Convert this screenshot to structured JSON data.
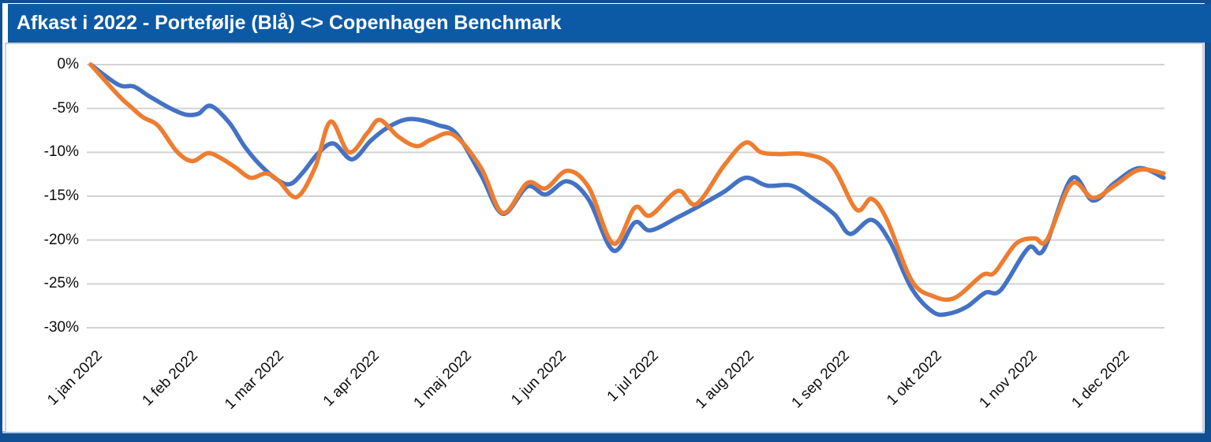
{
  "header": {
    "title": "Afkast i 2022 - Portefølje (Blå) <> Copenhagen Benchmark"
  },
  "colors": {
    "header_bar": "#0c5aa6",
    "frame_border": "#114f93",
    "frame_accent_light": "#a6c5e6",
    "gridline": "#d3d3d3",
    "axis_text": "#0d0d0d",
    "portfolio_blue": "#4472C4",
    "benchmark_orange": "#ED7D31"
  },
  "chart_data": {
    "type": "line",
    "title": "Afkast i 2022 - Portefølje (Blå) <> Copenhagen Benchmark",
    "xlabel": "",
    "ylabel": "",
    "grid": true,
    "legend": "none",
    "x_axis": {
      "unit": "date",
      "tick_labels": [
        "1 jan 2022",
        "1 feb 2022",
        "1 mar 2022",
        "1 apr 2022",
        "1 maj 2022",
        "1 jun 2022",
        "1 jul 2022",
        "1 aug 2022",
        "1 sep 2022",
        "1 okt 2022",
        "1 nov 2022",
        "1 dec 2022"
      ],
      "tick_days": [
        0,
        31,
        59,
        90,
        120,
        151,
        181,
        212,
        243,
        273,
        304,
        334
      ],
      "domain_days": [
        0,
        349
      ]
    },
    "y_axis": {
      "unit": "%",
      "tick_labels": [
        "0%",
        "-5%",
        "-10%",
        "-15%",
        "-20%",
        "-25%",
        "-30%"
      ],
      "tick_values": [
        0,
        -5,
        -10,
        -15,
        -20,
        -25,
        -30
      ],
      "range": [
        -30,
        0
      ]
    },
    "series": [
      {
        "name": "Portefølje",
        "color": "#4472C4",
        "points": [
          [
            0,
            0
          ],
          [
            9,
            -2.3
          ],
          [
            14,
            -2.5
          ],
          [
            19,
            -3.6
          ],
          [
            26,
            -5.0
          ],
          [
            31,
            -5.7
          ],
          [
            35,
            -5.6
          ],
          [
            39,
            -4.7
          ],
          [
            45,
            -6.6
          ],
          [
            50,
            -9.3
          ],
          [
            55,
            -11.4
          ],
          [
            61,
            -13.2
          ],
          [
            65,
            -13.6
          ],
          [
            69,
            -12.3
          ],
          [
            74,
            -10.1
          ],
          [
            79,
            -9.0
          ],
          [
            85,
            -10.8
          ],
          [
            91,
            -8.7
          ],
          [
            96,
            -7.3
          ],
          [
            102,
            -6.3
          ],
          [
            107,
            -6.3
          ],
          [
            113,
            -6.9
          ],
          [
            119,
            -7.9
          ],
          [
            127,
            -12.6
          ],
          [
            134,
            -17.0
          ],
          [
            142,
            -13.9
          ],
          [
            148,
            -14.8
          ],
          [
            155,
            -13.3
          ],
          [
            162,
            -15.4
          ],
          [
            170,
            -21.2
          ],
          [
            177,
            -18.0
          ],
          [
            182,
            -18.9
          ],
          [
            191,
            -17.4
          ],
          [
            198,
            -16.1
          ],
          [
            206,
            -14.5
          ],
          [
            213,
            -12.9
          ],
          [
            220,
            -13.8
          ],
          [
            228,
            -13.8
          ],
          [
            235,
            -15.3
          ],
          [
            242,
            -17.1
          ],
          [
            247,
            -19.3
          ],
          [
            254,
            -17.7
          ],
          [
            260,
            -20.2
          ],
          [
            267,
            -25.5
          ],
          [
            274,
            -28.2
          ],
          [
            279,
            -28.4
          ],
          [
            285,
            -27.6
          ],
          [
            291,
            -26.0
          ],
          [
            296,
            -25.7
          ],
          [
            305,
            -20.9
          ],
          [
            310,
            -21.1
          ],
          [
            319,
            -13.0
          ],
          [
            326,
            -15.5
          ],
          [
            333,
            -13.5
          ],
          [
            341,
            -11.8
          ],
          [
            349,
            -12.9
          ]
        ]
      },
      {
        "name": "Copenhagen Benchmark",
        "color": "#ED7D31",
        "points": [
          [
            0,
            0
          ],
          [
            9,
            -3.5
          ],
          [
            13,
            -4.8
          ],
          [
            17,
            -6.0
          ],
          [
            22,
            -7.0
          ],
          [
            28,
            -9.9
          ],
          [
            33,
            -11.0
          ],
          [
            38,
            -10.1
          ],
          [
            42,
            -10.6
          ],
          [
            47,
            -11.7
          ],
          [
            52,
            -12.9
          ],
          [
            57,
            -12.4
          ],
          [
            61,
            -13.2
          ],
          [
            67,
            -15.1
          ],
          [
            73,
            -11.7
          ],
          [
            78,
            -6.5
          ],
          [
            84,
            -10.0
          ],
          [
            90,
            -7.8
          ],
          [
            94,
            -6.3
          ],
          [
            100,
            -8.2
          ],
          [
            106,
            -9.3
          ],
          [
            111,
            -8.5
          ],
          [
            118,
            -8.0
          ],
          [
            127,
            -11.8
          ],
          [
            134,
            -16.9
          ],
          [
            142,
            -13.5
          ],
          [
            148,
            -14.1
          ],
          [
            155,
            -12.1
          ],
          [
            162,
            -14.0
          ],
          [
            170,
            -20.4
          ],
          [
            177,
            -16.3
          ],
          [
            182,
            -17.2
          ],
          [
            191,
            -14.4
          ],
          [
            197,
            -15.9
          ],
          [
            206,
            -11.5
          ],
          [
            213,
            -8.9
          ],
          [
            218,
            -10.0
          ],
          [
            224,
            -10.2
          ],
          [
            232,
            -10.2
          ],
          [
            241,
            -11.5
          ],
          [
            249,
            -16.5
          ],
          [
            254,
            -15.3
          ],
          [
            259,
            -17.7
          ],
          [
            267,
            -24.6
          ],
          [
            274,
            -26.4
          ],
          [
            281,
            -26.6
          ],
          [
            290,
            -24.0
          ],
          [
            294,
            -23.7
          ],
          [
            301,
            -20.4
          ],
          [
            307,
            -19.8
          ],
          [
            311,
            -20.0
          ],
          [
            319,
            -13.6
          ],
          [
            326,
            -15.2
          ],
          [
            333,
            -13.8
          ],
          [
            341,
            -12.0
          ],
          [
            349,
            -12.4
          ]
        ]
      }
    ]
  }
}
